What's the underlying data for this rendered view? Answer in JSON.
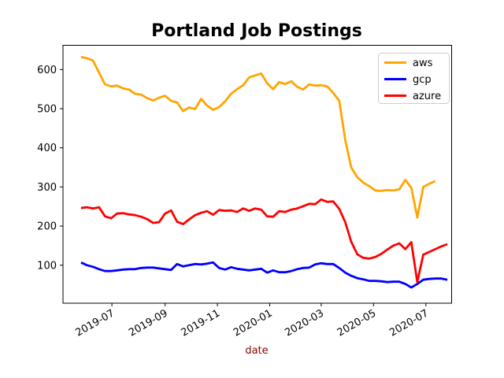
{
  "chart_data": {
    "type": "line",
    "title": "Portland Job Postings",
    "xlabel": "date",
    "xlabel_color": "#8b0000",
    "ylabel": "",
    "grid": false,
    "legend": {
      "position": "upper right",
      "entries": [
        {
          "label": "aws",
          "color": "#ffa500"
        },
        {
          "label": "gcp",
          "color": "#0000ff"
        },
        {
          "label": "azure",
          "color": "#ff0000"
        }
      ]
    },
    "x_ticks": [
      {
        "label": "2019-07",
        "date": "2019-07-01"
      },
      {
        "label": "2019-09",
        "date": "2019-09-01"
      },
      {
        "label": "2019-11",
        "date": "2019-11-01"
      },
      {
        "label": "2020-01",
        "date": "2020-01-01"
      },
      {
        "label": "2020-03",
        "date": "2020-03-01"
      },
      {
        "label": "2020-05",
        "date": "2020-05-01"
      },
      {
        "label": "2020-07",
        "date": "2020-07-01"
      }
    ],
    "y_ticks": [
      100,
      200,
      300,
      400,
      500,
      600
    ],
    "xlim": [
      "2019-05-05",
      "2020-07-31"
    ],
    "ylim": [
      3,
      662
    ],
    "dates": [
      "2019-05-26",
      "2019-06-02",
      "2019-06-09",
      "2019-06-16",
      "2019-06-23",
      "2019-06-30",
      "2019-07-07",
      "2019-07-14",
      "2019-07-21",
      "2019-07-28",
      "2019-08-04",
      "2019-08-11",
      "2019-08-18",
      "2019-08-25",
      "2019-09-01",
      "2019-09-08",
      "2019-09-15",
      "2019-09-22",
      "2019-09-29",
      "2019-10-06",
      "2019-10-13",
      "2019-10-20",
      "2019-10-27",
      "2019-11-03",
      "2019-11-10",
      "2019-11-17",
      "2019-11-24",
      "2019-12-01",
      "2019-12-08",
      "2019-12-15",
      "2019-12-22",
      "2019-12-29",
      "2020-01-05",
      "2020-01-12",
      "2020-01-19",
      "2020-01-26",
      "2020-02-02",
      "2020-02-09",
      "2020-02-16",
      "2020-02-23",
      "2020-03-01",
      "2020-03-08",
      "2020-03-15",
      "2020-03-22",
      "2020-03-29",
      "2020-04-05",
      "2020-04-12",
      "2020-04-19",
      "2020-04-26",
      "2020-05-03",
      "2020-05-10",
      "2020-05-17",
      "2020-05-24",
      "2020-05-31",
      "2020-06-07",
      "2020-06-14",
      "2020-06-21",
      "2020-06-28",
      "2020-07-05",
      "2020-07-12",
      "2020-07-19",
      "2020-07-26"
    ],
    "series": [
      {
        "name": "aws",
        "color": "#ffa500",
        "values": [
          632,
          629,
          623,
          592,
          562,
          557,
          559,
          552,
          549,
          538,
          536,
          527,
          521,
          528,
          533,
          520,
          516,
          494,
          503,
          499,
          525,
          508,
          497,
          504,
          519,
          538,
          550,
          560,
          580,
          585,
          590,
          565,
          550,
          568,
          563,
          570,
          556,
          549,
          562,
          559,
          560,
          557,
          540,
          520,
          420,
          350,
          325,
          311,
          302,
          291,
          290,
          292,
          291,
          294,
          318,
          298,
          222,
          300,
          308,
          315,
          null,
          null
        ]
      },
      {
        "name": "gcp",
        "color": "#0000ff",
        "values": [
          107,
          100,
          96,
          90,
          85,
          85,
          87,
          89,
          90,
          90,
          93,
          94,
          94,
          92,
          90,
          88,
          103,
          97,
          100,
          103,
          102,
          104,
          107,
          93,
          89,
          95,
          91,
          89,
          87,
          89,
          91,
          81,
          87,
          82,
          82,
          85,
          90,
          93,
          94,
          102,
          105,
          103,
          103,
          93,
          81,
          73,
          67,
          64,
          60,
          60,
          59,
          57,
          58,
          58,
          52,
          43,
          52,
          63,
          65,
          66,
          66,
          63
        ]
      },
      {
        "name": "azure",
        "color": "#ff0000",
        "values": [
          246,
          248,
          245,
          248,
          225,
          220,
          232,
          233,
          230,
          228,
          224,
          218,
          208,
          210,
          232,
          240,
          211,
          205,
          217,
          228,
          234,
          238,
          229,
          241,
          239,
          240,
          236,
          245,
          239,
          245,
          242,
          225,
          224,
          238,
          236,
          242,
          245,
          251,
          257,
          256,
          268,
          262,
          263,
          244,
          210,
          160,
          128,
          119,
          117,
          121,
          129,
          140,
          150,
          156,
          141,
          159,
          57,
          127,
          134,
          141,
          148,
          154
        ]
      }
    ]
  }
}
